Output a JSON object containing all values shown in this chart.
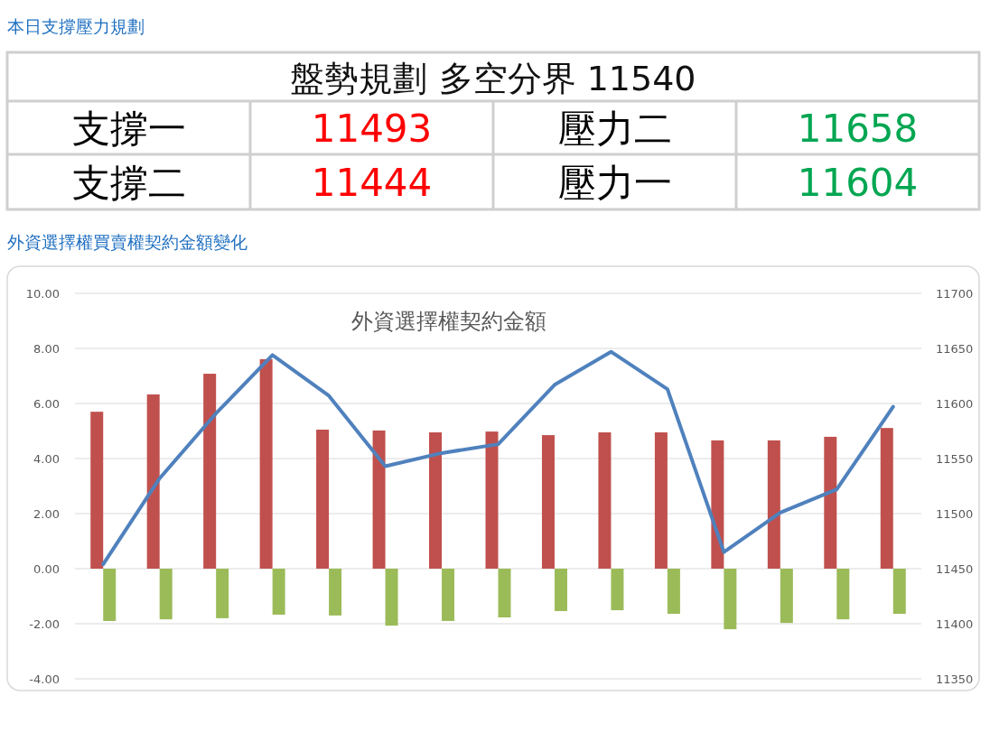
{
  "chart_data": [
    {
      "type": "other",
      "title": "本日支撐壓力規劃",
      "subtitle": "盤勢規劃 多空分界 11540",
      "annotations": [
        "支撐一",
        "11493",
        "壓力二",
        "11658",
        "支撐二",
        "11444",
        "壓力一",
        "11604"
      ],
      "colors": [
        "#000000",
        "#ff0000",
        "#000000",
        "#00a651",
        "#000000",
        "#ff0000",
        "#000000",
        "#00a651"
      ]
    },
    {
      "type": "bar",
      "title": "外資選擇權買賣權契約金額變化",
      "subtitle": "外資選擇權契約金額",
      "categories": [
        null,
        null,
        null,
        null,
        null,
        null,
        null,
        null,
        null,
        null,
        null,
        null,
        null,
        null,
        null
      ],
      "series": [
        {
          "color": "#c0504d",
          "values": [
            5.7,
            6.33,
            7.08,
            7.61,
            5.05,
            5.02,
            4.95,
            4.98,
            4.85,
            4.95,
            4.95,
            4.66,
            4.66,
            4.79,
            5.11
          ]
        },
        {
          "color": "#9bbb59",
          "values": [
            -1.9,
            -1.84,
            -1.8,
            -1.67,
            -1.7,
            -2.07,
            -1.9,
            -1.77,
            -1.54,
            -1.51,
            -1.64,
            -2.2,
            -1.97,
            -1.84,
            -1.64
          ]
        },
        {
          "type": "line",
          "axis": "y2",
          "color": "#4f81bd",
          "values": [
            11454,
            11532,
            11591,
            11644,
            11607,
            11543,
            11555,
            11563,
            11617,
            11647,
            11613,
            11465,
            11501,
            11522,
            11597
          ]
        }
      ],
      "ylim": [
        -4,
        10
      ],
      "yticks": [
        {
          "value": 10,
          "label": "10.00"
        },
        {
          "value": 8,
          "label": "8.00"
        },
        {
          "value": 6,
          "label": "6.00"
        },
        {
          "value": 4,
          "label": "4.00"
        },
        {
          "value": 2,
          "label": "2.00"
        },
        {
          "value": 0,
          "label": "0.00"
        },
        {
          "value": -2,
          "label": "-2.00"
        },
        {
          "value": -4,
          "label": "-4.00"
        }
      ],
      "y2lim": [
        11350,
        11700
      ],
      "y2ticks": [
        11700,
        11650,
        11600,
        11550,
        11500,
        11450,
        11400,
        11350
      ],
      "grid": "y"
    }
  ]
}
